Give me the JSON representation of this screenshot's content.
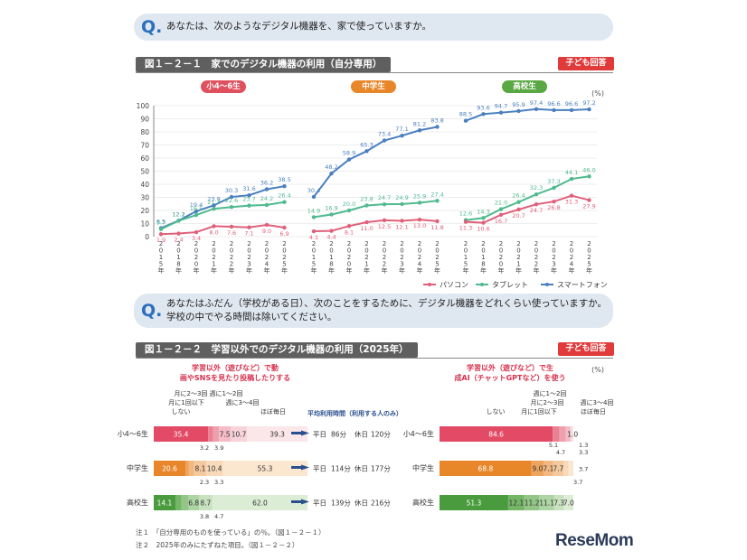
{
  "q1": {
    "mark": "Q.",
    "text": "あなたは、次のようなデジタル機器を、家で使っていますか。"
  },
  "fig1": {
    "title": "図１－２－１　家でのデジタル機器の利用（自分専用）",
    "badge": "子ども回答"
  },
  "q2": {
    "mark": "Q.",
    "line1": "あなたはふだん（学校がある日）、次のことをするために、デジタル機器をどれくらい使っていますか。",
    "line2": "学校の中でやる時間は除いてください。"
  },
  "fig2": {
    "title": "図１－２－２　学習以外でのデジタル機器の利用（2025年）",
    "badge": "子ども回答"
  },
  "notes": [
    "注１　「自分専用のものを使っている」の％。（図１－２－１）",
    "注２　2025年のみにたずねた項目。（図１－２－２）"
  ],
  "logo": "ReseMom",
  "chart_data": [
    {
      "type": "line",
      "title": "家でのデジタル機器の利用（自分専用）",
      "ylabel": "(%)",
      "ylim": [
        0,
        100
      ],
      "yticks": [
        0,
        10,
        20,
        30,
        40,
        50,
        60,
        70,
        80,
        90,
        100
      ],
      "groups": [
        {
          "name": "小4～6生",
          "color": "#e0505f",
          "x": [
            "2015年",
            "2018年",
            "2020年",
            "2021年",
            "2022年",
            "2023年",
            "2024年",
            "2025年"
          ],
          "series": [
            {
              "name": "スマートフォン",
              "values": [
                6.5,
                12.2,
                19.4,
                23.9,
                30.3,
                31.6,
                36.2,
                38.5
              ]
            },
            {
              "name": "タブレット",
              "values": [
                5.7,
                12.1,
                16.5,
                21.3,
                22.6,
                23.7,
                24.2,
                26.4
              ]
            },
            {
              "name": "パソコン",
              "values": [
                1.9,
                2.4,
                3.4,
                8.0,
                7.6,
                7.1,
                9.0,
                6.9
              ]
            }
          ]
        },
        {
          "name": "中学生",
          "color": "#e8872a",
          "x": [
            "2015年",
            "2018年",
            "2020年",
            "2021年",
            "2022年",
            "2023年",
            "2024年",
            "2025年"
          ],
          "series": [
            {
              "name": "スマートフォン",
              "values": [
                30.4,
                48.2,
                58.9,
                65.3,
                73.4,
                77.1,
                81.2,
                83.8
              ]
            },
            {
              "name": "タブレット",
              "values": [
                14.9,
                16.9,
                20.0,
                23.8,
                24.7,
                24.9,
                25.9,
                27.4
              ]
            },
            {
              "name": "パソコン",
              "values": [
                4.1,
                4.4,
                8.1,
                11.0,
                12.5,
                12.1,
                13.0,
                11.8
              ]
            }
          ]
        },
        {
          "name": "高校生",
          "color": "#5aa843",
          "x": [
            "2015年",
            "2018年",
            "2020年",
            "2021年",
            "2022年",
            "2023年",
            "2024年",
            "2025年"
          ],
          "series": [
            {
              "name": "スマートフォン",
              "values": [
                88.5,
                93.6,
                94.7,
                95.9,
                97.4,
                96.6,
                96.6,
                97.2
              ]
            },
            {
              "name": "タブレット",
              "values": [
                12.6,
                14.3,
                21.0,
                26.4,
                32.3,
                37.3,
                44.1,
                46.0
              ]
            },
            {
              "name": "パソコン",
              "values": [
                11.3,
                10.6,
                16.7,
                20.7,
                24.7,
                26.8,
                31.3,
                27.9
              ]
            }
          ]
        }
      ],
      "legend": [
        {
          "name": "パソコン",
          "color": "#e0607a"
        },
        {
          "name": "タブレット",
          "color": "#4fba8f"
        },
        {
          "name": "スマートフォン",
          "color": "#4a7fc0"
        }
      ]
    },
    {
      "type": "bar",
      "stacked": true,
      "title": "学習以外（遊びなど）で動画やSNSを見たり投稿したりする",
      "categories": [
        "小4～6生",
        "中学生",
        "高校生"
      ],
      "segments": [
        "しない",
        "月に1回以下",
        "月に2～3回",
        "週に1～2回",
        "週に3～4回",
        "ほぼ毎日"
      ],
      "values": [
        [
          35.4,
          3.2,
          3.9,
          7.5,
          10.7,
          39.3
        ],
        [
          20.6,
          2.3,
          3.3,
          8.1,
          10.4,
          55.3
        ],
        [
          14.1,
          3.8,
          4.7,
          6.8,
          8.7,
          62.0
        ]
      ],
      "labels": [
        [
          "35.4",
          "",
          "",
          "7.5",
          "10.7",
          "39.3"
        ],
        [
          "20.6",
          "",
          "",
          "8.1",
          "10.4",
          "55.3"
        ],
        [
          "14.1",
          "",
          "",
          "6.8",
          "8.7",
          "62.0"
        ]
      ],
      "below_labels": [
        [
          "3.2",
          "3.9"
        ],
        [
          "2.3",
          "3.3"
        ],
        [
          "3.8",
          "4.7"
        ]
      ],
      "avg_header": "平均利用時間（利用する人のみ）",
      "averages": [
        {
          "weekday_label": "平日",
          "weekday": "86分",
          "holiday_label": "休日",
          "holiday": "120分"
        },
        {
          "weekday_label": "平日",
          "weekday": "114分",
          "holiday_label": "休日",
          "holiday": "177分"
        },
        {
          "weekday_label": "平日",
          "weekday": "139分",
          "holiday_label": "休日",
          "holiday": "216分"
        }
      ]
    },
    {
      "type": "bar",
      "stacked": true,
      "title": "学習以外（遊びなど）で生成AI（チャットGPTなど）を使う",
      "categories": [
        "小4～6生",
        "中学生",
        "高校生"
      ],
      "segments": [
        "しない",
        "月に1回以下",
        "月に2～3回",
        "週に1～2回",
        "週に3～4回",
        "ほぼ毎日"
      ],
      "values": [
        [
          84.6,
          5.1,
          4.7,
          3.3,
          1.3,
          1.0
        ],
        [
          68.8,
          9.0,
          7.1,
          7.7,
          3.7,
          3.7
        ],
        [
          51.3,
          12.1,
          11.2,
          11.1,
          7.3,
          7.0
        ]
      ],
      "labels": [
        [
          "84.6",
          "",
          "",
          "",
          "",
          "1.0"
        ],
        [
          "68.8",
          "9.0",
          "7.1",
          "7.7",
          "",
          ""
        ],
        [
          "51.3",
          "12.1",
          "11.2",
          "11.1",
          "7.3",
          "7.0"
        ]
      ],
      "side_labels": [
        [
          "5.1",
          "4.7",
          "1.3",
          "3.3"
        ],
        [
          "3.7",
          "3.7"
        ],
        []
      ]
    }
  ]
}
